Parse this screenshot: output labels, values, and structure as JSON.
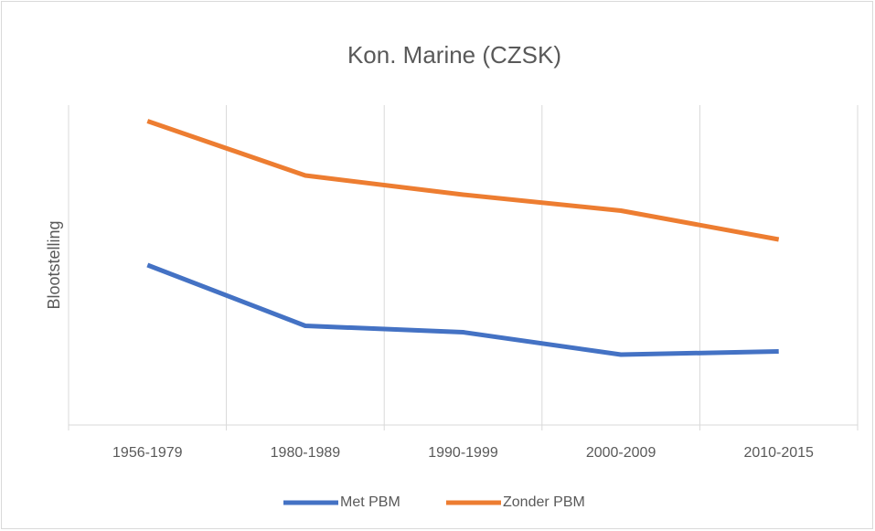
{
  "chart_data": {
    "type": "line",
    "title": "Kon. Marine (CZSK)",
    "ylabel": "Blootstelling",
    "categories": [
      "1956-1979",
      "1980-1989",
      "1990-1999",
      "2000-2009",
      "2010-2015"
    ],
    "series": [
      {
        "name": "Met PBM",
        "color": "#4472c4",
        "values": [
          50,
          31,
          29,
          22,
          23
        ]
      },
      {
        "name": "Zonder PBM",
        "color": "#ed7d31",
        "values": [
          95,
          78,
          72,
          67,
          58
        ]
      }
    ],
    "ylim": [
      0,
      100
    ],
    "grid": true,
    "legend": "bottom"
  }
}
